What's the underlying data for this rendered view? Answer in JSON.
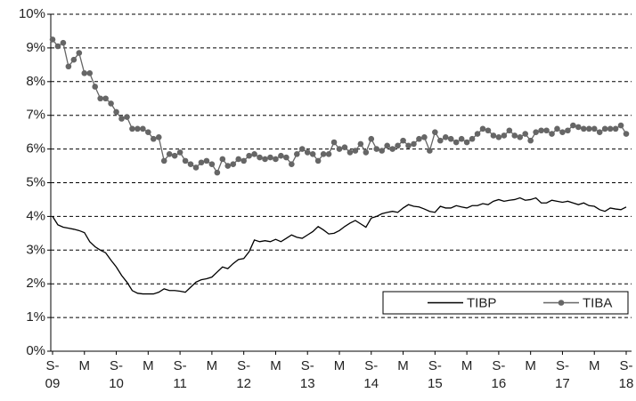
{
  "chart_data": {
    "type": "line",
    "categories": [
      "S-09",
      null,
      null,
      null,
      null,
      null,
      "M",
      null,
      null,
      null,
      null,
      null,
      "S-10",
      null,
      null,
      null,
      null,
      null,
      "M",
      null,
      null,
      null,
      null,
      null,
      "S-11",
      null,
      null,
      null,
      null,
      null,
      "M",
      null,
      null,
      null,
      null,
      null,
      "S-12",
      null,
      null,
      null,
      null,
      null,
      "M",
      null,
      null,
      null,
      null,
      null,
      "S-13",
      null,
      null,
      null,
      null,
      null,
      "M",
      null,
      null,
      null,
      null,
      null,
      "S-14",
      null,
      null,
      null,
      null,
      null,
      "M",
      null,
      null,
      null,
      null,
      null,
      "S-15",
      null,
      null,
      null,
      null,
      null,
      "M",
      null,
      null,
      null,
      null,
      null,
      "S-16",
      null,
      null,
      null,
      null,
      null,
      "M",
      null,
      null,
      null,
      null,
      null,
      "S-17",
      null,
      null,
      null,
      null,
      null,
      "M",
      null,
      null,
      null,
      null,
      null,
      "S-18"
    ],
    "series": [
      {
        "name": "TIBP",
        "color": "#000000",
        "marker": false,
        "values": [
          4.0,
          3.75,
          3.68,
          3.65,
          3.62,
          3.58,
          3.52,
          3.25,
          3.1,
          3.0,
          2.92,
          2.7,
          2.5,
          2.25,
          2.05,
          1.8,
          1.72,
          1.7,
          1.7,
          1.7,
          1.75,
          1.85,
          1.8,
          1.8,
          1.78,
          1.75,
          1.9,
          2.05,
          2.12,
          2.15,
          2.2,
          2.35,
          2.5,
          2.45,
          2.6,
          2.72,
          2.75,
          2.95,
          3.3,
          3.25,
          3.28,
          3.25,
          3.32,
          3.25,
          3.35,
          3.45,
          3.38,
          3.35,
          3.45,
          3.55,
          3.7,
          3.6,
          3.48,
          3.5,
          3.58,
          3.7,
          3.8,
          3.88,
          3.78,
          3.68,
          3.95,
          4.0,
          4.08,
          4.12,
          4.15,
          4.12,
          4.25,
          4.35,
          4.3,
          4.28,
          4.22,
          4.15,
          4.12,
          4.3,
          4.25,
          4.25,
          4.32,
          4.28,
          4.25,
          4.32,
          4.32,
          4.38,
          4.35,
          4.45,
          4.5,
          4.45,
          4.48,
          4.5,
          4.55,
          4.48,
          4.5,
          4.55,
          4.4,
          4.4,
          4.48,
          4.45,
          4.42,
          4.45,
          4.4,
          4.35,
          4.4,
          4.32,
          4.3,
          4.2,
          4.15,
          4.25,
          4.22,
          4.2,
          4.28
        ]
      },
      {
        "name": "TIBA",
        "color": "#666666",
        "marker": true,
        "values": [
          9.25,
          9.05,
          9.15,
          8.45,
          8.65,
          8.85,
          8.25,
          8.25,
          7.85,
          7.5,
          7.5,
          7.35,
          7.1,
          6.9,
          6.95,
          6.6,
          6.6,
          6.6,
          6.5,
          6.3,
          6.35,
          5.65,
          5.85,
          5.8,
          5.9,
          5.65,
          5.55,
          5.45,
          5.6,
          5.65,
          5.55,
          5.3,
          5.7,
          5.5,
          5.55,
          5.7,
          5.65,
          5.8,
          5.85,
          5.75,
          5.7,
          5.75,
          5.7,
          5.8,
          5.75,
          5.55,
          5.85,
          6.0,
          5.9,
          5.85,
          5.65,
          5.85,
          5.85,
          6.2,
          6.0,
          6.05,
          5.9,
          5.95,
          6.15,
          5.9,
          6.3,
          6.0,
          5.95,
          6.1,
          6.0,
          6.1,
          6.25,
          6.1,
          6.15,
          6.3,
          6.35,
          5.95,
          6.5,
          6.25,
          6.35,
          6.3,
          6.2,
          6.3,
          6.2,
          6.3,
          6.45,
          6.6,
          6.55,
          6.4,
          6.35,
          6.4,
          6.55,
          6.4,
          6.35,
          6.45,
          6.25,
          6.5,
          6.55,
          6.55,
          6.45,
          6.6,
          6.5,
          6.55,
          6.7,
          6.65,
          6.6,
          6.6,
          6.6,
          6.5,
          6.6,
          6.6,
          6.6,
          6.7,
          6.45
        ]
      }
    ],
    "ylim": [
      0,
      10
    ],
    "yticks": [
      {
        "value": 0,
        "label": "0%"
      },
      {
        "value": 1,
        "label": "1%"
      },
      {
        "value": 2,
        "label": "2%"
      },
      {
        "value": 3,
        "label": "3%"
      },
      {
        "value": 4,
        "label": "4%"
      },
      {
        "value": 5,
        "label": "5%"
      },
      {
        "value": 6,
        "label": "6%"
      },
      {
        "value": 7,
        "label": "7%"
      },
      {
        "value": 8,
        "label": "8%"
      },
      {
        "value": 9,
        "label": "9%"
      },
      {
        "value": 10,
        "label": "10%"
      }
    ],
    "grid": true,
    "legend": "lower right"
  }
}
